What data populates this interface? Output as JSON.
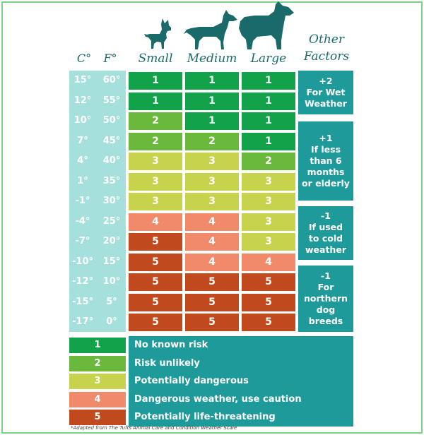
{
  "headers": {
    "celsius": "C°",
    "fahrenheit": "F°",
    "small": "Small",
    "medium": "Medium",
    "large": "Large",
    "other_line1": "Other",
    "other_line2": "Factors"
  },
  "temps": [
    {
      "c": "15°",
      "f": "60°"
    },
    {
      "c": "12°",
      "f": "55°"
    },
    {
      "c": "10°",
      "f": "50°"
    },
    {
      "c": "7°",
      "f": "45°"
    },
    {
      "c": "4°",
      "f": "40°"
    },
    {
      "c": "1°",
      "f": "35°"
    },
    {
      "c": "-1°",
      "f": "30°"
    },
    {
      "c": "-4°",
      "f": "25°"
    },
    {
      "c": "-7°",
      "f": "20°"
    },
    {
      "c": "-10°",
      "f": "15°"
    },
    {
      "c": "-12°",
      "f": "10°"
    },
    {
      "c": "-15°",
      "f": "5°"
    },
    {
      "c": "-17°",
      "f": "0°"
    }
  ],
  "risk_table": [
    [
      "1",
      "1",
      "1"
    ],
    [
      "1",
      "1",
      "1"
    ],
    [
      "2",
      "1",
      "1"
    ],
    [
      "2",
      "2",
      "1"
    ],
    [
      "3",
      "3",
      "2"
    ],
    [
      "3",
      "3",
      "3"
    ],
    [
      "3",
      "3",
      "3"
    ],
    [
      "4",
      "4",
      "3"
    ],
    [
      "5",
      "4",
      "3"
    ],
    [
      "5",
      "4",
      "4"
    ],
    [
      "5",
      "5",
      "5"
    ],
    [
      "5",
      "5",
      "5"
    ],
    [
      "5",
      "5",
      "5"
    ]
  ],
  "risk_colors": {
    "1": "#12a24a",
    "2": "#6ab93d",
    "3": "#c7d34c",
    "4": "#f08a6a",
    "5": "#c04a1e"
  },
  "factors": [
    {
      "line1": "+2",
      "line2": "For Wet",
      "line3": "Weather",
      "line4": "",
      "line5": ""
    },
    {
      "line1": "+1",
      "line2": "If less",
      "line3": "than 6",
      "line4": "months",
      "line5": "or elderly"
    },
    {
      "line1": "-1",
      "line2": "If used",
      "line3": "to cold",
      "line4": "weather",
      "line5": ""
    },
    {
      "line1": "-1",
      "line2": "For",
      "line3": "northern",
      "line4": "dog",
      "line5": "breeds"
    }
  ],
  "legend": [
    {
      "level": "1",
      "text": "No known risk"
    },
    {
      "level": "2",
      "text": "Risk unlikely"
    },
    {
      "level": "3",
      "text": "Potentially dangerous"
    },
    {
      "level": "4",
      "text": "Dangerous weather, use caution"
    },
    {
      "level": "5",
      "text": "Potentially life-threatening"
    }
  ],
  "footnote": "*Adapted from The Tufts Animal Care and Condition Weather Scale",
  "colors": {
    "teal": "#1e9a9a",
    "light_teal": "#a6e0dc",
    "header_ink": "#1a6a6a"
  }
}
